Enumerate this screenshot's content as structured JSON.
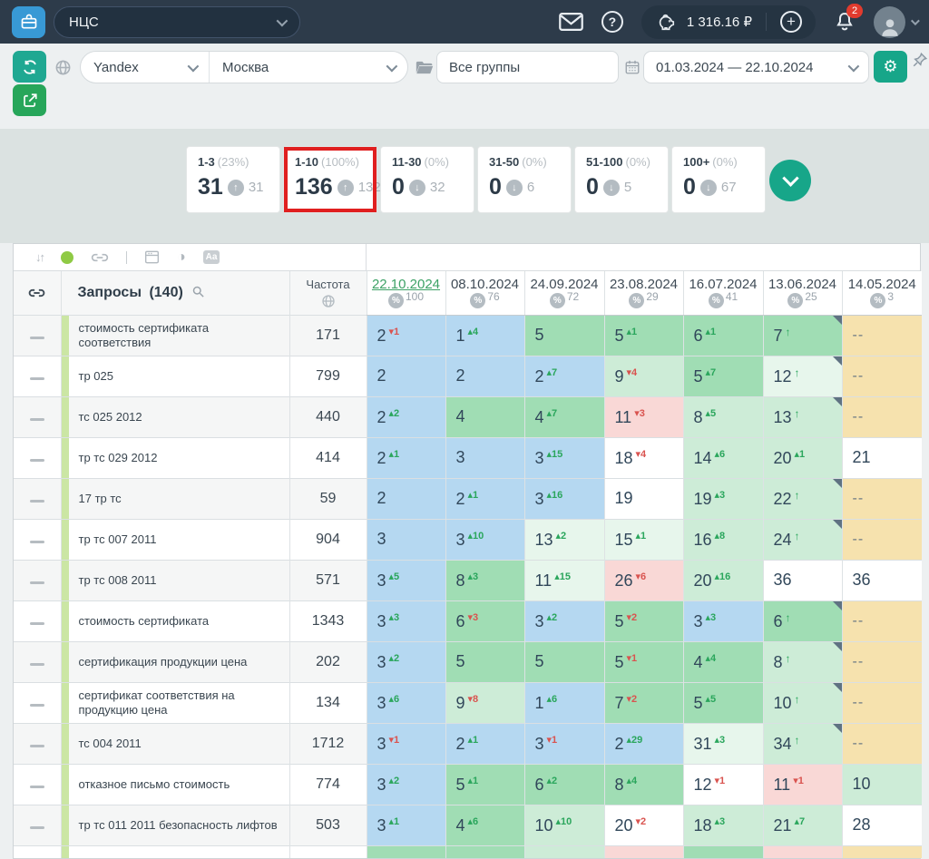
{
  "navbar": {
    "project": "НЦС",
    "balance": "1 316.16 ₽",
    "bell_badge": "2"
  },
  "toolbar": {
    "search_engine": "Yandex",
    "region": "Москва",
    "groups": "Все группы",
    "date_range": "01.03.2024 — 22.10.2024",
    "gear_glyph": "⚙"
  },
  "summary": {
    "cards": [
      {
        "label": "1-3",
        "percent": "(23%)",
        "value": "31",
        "dir": "up",
        "delta": "31",
        "highlighted": false
      },
      {
        "label": "1-10",
        "percent": "(100%)",
        "value": "136",
        "dir": "up",
        "delta": "132",
        "highlighted": true
      },
      {
        "label": "11-30",
        "percent": "(0%)",
        "value": "0",
        "dir": "down",
        "delta": "32",
        "highlighted": false
      },
      {
        "label": "31-50",
        "percent": "(0%)",
        "value": "0",
        "dir": "down",
        "delta": "6",
        "highlighted": false
      },
      {
        "label": "51-100",
        "percent": "(0%)",
        "value": "0",
        "dir": "down",
        "delta": "5",
        "highlighted": false
      },
      {
        "label": "100+",
        "percent": "(0%)",
        "value": "0",
        "dir": "down",
        "delta": "67",
        "highlighted": false
      }
    ]
  },
  "icons": {
    "sort": "↓↑",
    "contrast": "◑",
    "font": "Aa",
    "percent": "%"
  },
  "palette": {
    "blue": "#b5d8f1",
    "green": "#a0ddb4",
    "lgreen": "#cdecd7",
    "xlgreen": "#e7f6ec",
    "pink": "#f9d8d6",
    "tan": "#f6e2ae",
    "white": "#ffffff",
    "accent_teal": "#1fa892",
    "accent_green": "#27a65a",
    "highlight_red": "#e01f1f"
  },
  "table": {
    "queries_label": "Запросы",
    "queries_count": "(140)",
    "frequency_label": "Частота",
    "columns": [
      {
        "date": "22.10.2024",
        "percent": "100",
        "current": true
      },
      {
        "date": "08.10.2024",
        "percent": "76",
        "current": false
      },
      {
        "date": "24.09.2024",
        "percent": "72",
        "current": false
      },
      {
        "date": "23.08.2024",
        "percent": "29",
        "current": false
      },
      {
        "date": "16.07.2024",
        "percent": "41",
        "current": false
      },
      {
        "date": "13.06.2024",
        "percent": "25",
        "current": false
      },
      {
        "date": "14.05.2024",
        "percent": "3",
        "current": false
      }
    ],
    "rows": [
      {
        "query": "стоимость сертификата соответствия",
        "frequency": "171",
        "cells": [
          {
            "v": "2",
            "dir": "down",
            "chg": "1",
            "bg": "blue"
          },
          {
            "v": "1",
            "dir": "up",
            "chg": "4",
            "bg": "blue"
          },
          {
            "v": "5",
            "bg": "green"
          },
          {
            "v": "5",
            "dir": "up",
            "chg": "1",
            "bg": "green"
          },
          {
            "v": "6",
            "dir": "up",
            "chg": "1",
            "bg": "green"
          },
          {
            "v": "7",
            "dir": "up",
            "arrow": true,
            "bg": "green",
            "corner": true
          },
          {
            "v": "--",
            "bg": "tan"
          }
        ]
      },
      {
        "query": "тр 025",
        "frequency": "799",
        "cells": [
          {
            "v": "2",
            "bg": "blue"
          },
          {
            "v": "2",
            "bg": "blue"
          },
          {
            "v": "2",
            "dir": "up",
            "chg": "7",
            "bg": "blue"
          },
          {
            "v": "9",
            "dir": "down",
            "chg": "4",
            "bg": "lgreen"
          },
          {
            "v": "5",
            "dir": "up",
            "chg": "7",
            "bg": "green"
          },
          {
            "v": "12",
            "dir": "up",
            "arrow": true,
            "bg": "xlgreen",
            "corner": true
          },
          {
            "v": "--",
            "bg": "tan"
          }
        ]
      },
      {
        "query": "тс 025 2012",
        "frequency": "440",
        "cells": [
          {
            "v": "2",
            "dir": "up",
            "chg": "2",
            "bg": "blue"
          },
          {
            "v": "4",
            "bg": "green"
          },
          {
            "v": "4",
            "dir": "up",
            "chg": "7",
            "bg": "green"
          },
          {
            "v": "11",
            "dir": "down",
            "chg": "3",
            "bg": "pink"
          },
          {
            "v": "8",
            "dir": "up",
            "chg": "5",
            "bg": "lgreen"
          },
          {
            "v": "13",
            "dir": "up",
            "arrow": true,
            "bg": "lgreen",
            "corner": true
          },
          {
            "v": "--",
            "bg": "tan"
          }
        ]
      },
      {
        "query": "тр тс 029 2012",
        "frequency": "414",
        "cells": [
          {
            "v": "2",
            "dir": "up",
            "chg": "1",
            "bg": "blue"
          },
          {
            "v": "3",
            "bg": "blue"
          },
          {
            "v": "3",
            "dir": "up",
            "chg": "15",
            "bg": "blue"
          },
          {
            "v": "18",
            "dir": "down",
            "chg": "4",
            "bg": "white"
          },
          {
            "v": "14",
            "dir": "up",
            "chg": "6",
            "bg": "lgreen"
          },
          {
            "v": "20",
            "dir": "up",
            "chg": "1",
            "bg": "lgreen"
          },
          {
            "v": "21",
            "bg": "white"
          }
        ]
      },
      {
        "query": "17 тр тс",
        "frequency": "59",
        "cells": [
          {
            "v": "2",
            "bg": "blue"
          },
          {
            "v": "2",
            "dir": "up",
            "chg": "1",
            "bg": "blue"
          },
          {
            "v": "3",
            "dir": "up",
            "chg": "16",
            "bg": "blue"
          },
          {
            "v": "19",
            "bg": "white"
          },
          {
            "v": "19",
            "dir": "up",
            "chg": "3",
            "bg": "lgreen"
          },
          {
            "v": "22",
            "dir": "up",
            "arrow": true,
            "bg": "lgreen",
            "corner": true
          },
          {
            "v": "--",
            "bg": "tan"
          }
        ]
      },
      {
        "query": "тр тс 007 2011",
        "frequency": "904",
        "cells": [
          {
            "v": "3",
            "bg": "blue"
          },
          {
            "v": "3",
            "dir": "up",
            "chg": "10",
            "bg": "blue"
          },
          {
            "v": "13",
            "dir": "up",
            "chg": "2",
            "bg": "xlgreen"
          },
          {
            "v": "15",
            "dir": "up",
            "chg": "1",
            "bg": "xlgreen"
          },
          {
            "v": "16",
            "dir": "up",
            "chg": "8",
            "bg": "lgreen"
          },
          {
            "v": "24",
            "dir": "up",
            "arrow": true,
            "bg": "lgreen",
            "corner": true
          },
          {
            "v": "--",
            "bg": "tan"
          }
        ]
      },
      {
        "query": "тр тс 008 2011",
        "frequency": "571",
        "cells": [
          {
            "v": "3",
            "dir": "up",
            "chg": "5",
            "bg": "blue"
          },
          {
            "v": "8",
            "dir": "up",
            "chg": "3",
            "bg": "green"
          },
          {
            "v": "11",
            "dir": "up",
            "chg": "15",
            "bg": "xlgreen"
          },
          {
            "v": "26",
            "dir": "down",
            "chg": "6",
            "bg": "pink"
          },
          {
            "v": "20",
            "dir": "up",
            "chg": "16",
            "bg": "lgreen"
          },
          {
            "v": "36",
            "bg": "white"
          },
          {
            "v": "36",
            "bg": "white"
          }
        ]
      },
      {
        "query": "стоимость сертификата",
        "frequency": "1343",
        "cells": [
          {
            "v": "3",
            "dir": "up",
            "chg": "3",
            "bg": "blue"
          },
          {
            "v": "6",
            "dir": "down",
            "chg": "3",
            "bg": "green"
          },
          {
            "v": "3",
            "dir": "up",
            "chg": "2",
            "bg": "blue"
          },
          {
            "v": "5",
            "dir": "down",
            "chg": "2",
            "bg": "green"
          },
          {
            "v": "3",
            "dir": "up",
            "chg": "3",
            "bg": "blue"
          },
          {
            "v": "6",
            "dir": "up",
            "arrow": true,
            "bg": "green",
            "corner": true
          },
          {
            "v": "--",
            "bg": "tan"
          }
        ]
      },
      {
        "query": "сертификация продукции цена",
        "frequency": "202",
        "cells": [
          {
            "v": "3",
            "dir": "up",
            "chg": "2",
            "bg": "blue"
          },
          {
            "v": "5",
            "bg": "green"
          },
          {
            "v": "5",
            "bg": "green"
          },
          {
            "v": "5",
            "dir": "down",
            "chg": "1",
            "bg": "green"
          },
          {
            "v": "4",
            "dir": "up",
            "chg": "4",
            "bg": "green"
          },
          {
            "v": "8",
            "dir": "up",
            "arrow": true,
            "bg": "lgreen",
            "corner": true
          },
          {
            "v": "--",
            "bg": "tan"
          }
        ]
      },
      {
        "query": "сертификат соответствия на продукцию цена",
        "frequency": "134",
        "cells": [
          {
            "v": "3",
            "dir": "up",
            "chg": "6",
            "bg": "blue"
          },
          {
            "v": "9",
            "dir": "down",
            "chg": "8",
            "bg": "lgreen"
          },
          {
            "v": "1",
            "dir": "up",
            "chg": "6",
            "bg": "blue"
          },
          {
            "v": "7",
            "dir": "down",
            "chg": "2",
            "bg": "green"
          },
          {
            "v": "5",
            "dir": "up",
            "chg": "5",
            "bg": "green"
          },
          {
            "v": "10",
            "dir": "up",
            "arrow": true,
            "bg": "lgreen",
            "corner": true
          },
          {
            "v": "--",
            "bg": "tan"
          }
        ]
      },
      {
        "query": "тс 004 2011",
        "frequency": "1712",
        "cells": [
          {
            "v": "3",
            "dir": "down",
            "chg": "1",
            "bg": "blue"
          },
          {
            "v": "2",
            "dir": "up",
            "chg": "1",
            "bg": "blue"
          },
          {
            "v": "3",
            "dir": "down",
            "chg": "1",
            "bg": "blue"
          },
          {
            "v": "2",
            "dir": "up",
            "chg": "29",
            "bg": "blue"
          },
          {
            "v": "31",
            "dir": "up",
            "chg": "3",
            "bg": "xlgreen"
          },
          {
            "v": "34",
            "dir": "up",
            "arrow": true,
            "bg": "lgreen",
            "corner": true
          },
          {
            "v": "--",
            "bg": "tan"
          }
        ]
      },
      {
        "query": "отказное письмо стоимость",
        "frequency": "774",
        "cells": [
          {
            "v": "3",
            "dir": "up",
            "chg": "2",
            "bg": "blue"
          },
          {
            "v": "5",
            "dir": "up",
            "chg": "1",
            "bg": "green"
          },
          {
            "v": "6",
            "dir": "up",
            "chg": "2",
            "bg": "green"
          },
          {
            "v": "8",
            "dir": "up",
            "chg": "4",
            "bg": "green"
          },
          {
            "v": "12",
            "dir": "down",
            "chg": "1",
            "bg": "white"
          },
          {
            "v": "11",
            "dir": "down",
            "chg": "1",
            "bg": "pink"
          },
          {
            "v": "10",
            "bg": "lgreen"
          }
        ]
      },
      {
        "query": "тр тс 011 2011 безопасность лифтов",
        "frequency": "503",
        "cells": [
          {
            "v": "3",
            "dir": "up",
            "chg": "1",
            "bg": "blue"
          },
          {
            "v": "4",
            "dir": "up",
            "chg": "6",
            "bg": "green"
          },
          {
            "v": "10",
            "dir": "up",
            "chg": "10",
            "bg": "lgreen"
          },
          {
            "v": "20",
            "dir": "down",
            "chg": "2",
            "bg": "white"
          },
          {
            "v": "18",
            "dir": "up",
            "chg": "3",
            "bg": "lgreen"
          },
          {
            "v": "21",
            "dir": "up",
            "chg": "7",
            "bg": "lgreen"
          },
          {
            "v": "28",
            "bg": "white"
          }
        ]
      }
    ],
    "partial_row": [
      "green",
      "green",
      "lgreen",
      "pink",
      "green",
      "pink",
      "tan"
    ]
  }
}
